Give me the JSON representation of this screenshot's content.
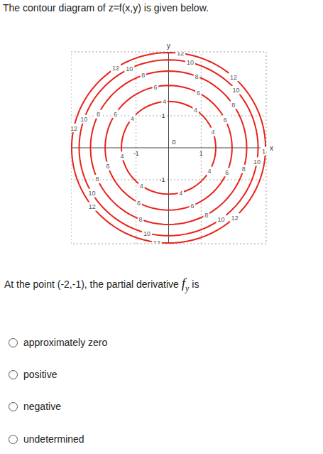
{
  "header": "The contour diagram of z=f(x,y) is given below.",
  "chart_data": {
    "type": "contour",
    "x_label": "x",
    "y_label": "y",
    "xlim": [
      -3,
      3
    ],
    "ylim": [
      -3,
      3
    ],
    "xticks": [
      -1,
      0,
      1
    ],
    "yticks": [
      -1,
      1
    ],
    "grid": true,
    "color": "#e8221c",
    "levels": [
      4,
      6,
      8,
      10,
      12
    ],
    "radii": [
      1.45,
      1.95,
      2.4,
      2.75,
      2.98
    ]
  },
  "question": {
    "text_before": "At the point (-2,-1), the partial derivative ",
    "symbol": "f",
    "subscript": "y",
    "text_after": " is"
  },
  "options": [
    "approximately zero",
    "positive",
    "negative",
    "undetermined"
  ]
}
